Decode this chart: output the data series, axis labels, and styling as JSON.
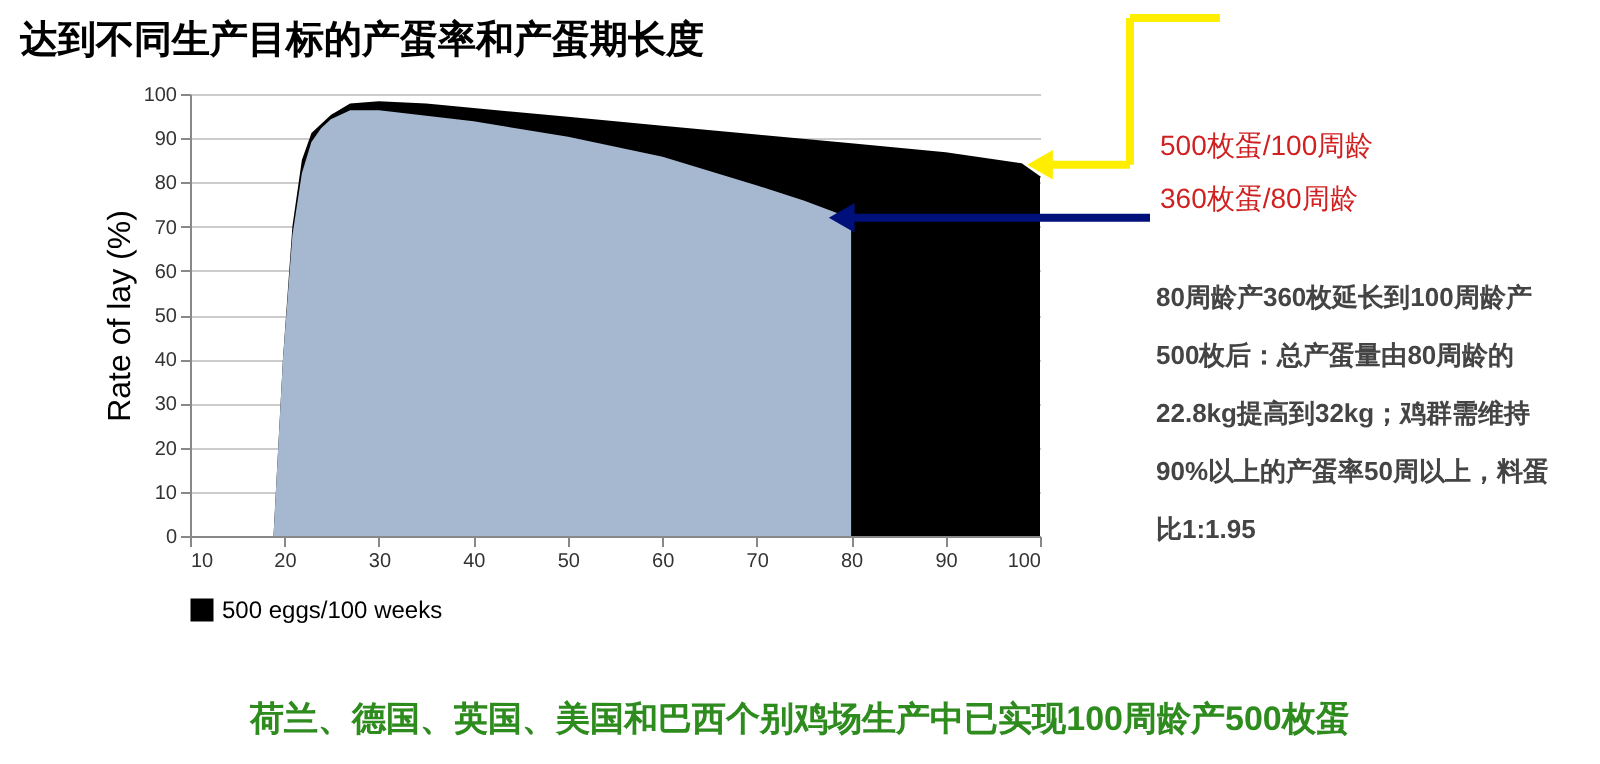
{
  "chart_data": {
    "type": "area",
    "title": "达到不同生产目标的产蛋率和产蛋期长度",
    "ylabel": "Rate of lay (%)",
    "xlim": [
      10,
      100
    ],
    "xticks": [
      10,
      20,
      30,
      40,
      50,
      60,
      70,
      80,
      90,
      100
    ],
    "ylim": [
      0,
      100
    ],
    "yticks": [
      0,
      10,
      20,
      30,
      40,
      50,
      60,
      70,
      80,
      90,
      100
    ],
    "grid": "y",
    "legend": "bottom",
    "series": [
      {
        "name": "500 eggs/100 weeks",
        "color": "#000000",
        "x": [
          19,
          20,
          21,
          22,
          23,
          25,
          27,
          30,
          35,
          40,
          50,
          60,
          70,
          80,
          90,
          98,
          100
        ],
        "values": [
          0,
          40,
          70,
          85,
          91,
          95,
          97.5,
          98,
          97.5,
          96.5,
          94.5,
          92.5,
          90.5,
          88.5,
          86.5,
          84,
          81
        ]
      },
      {
        "color": "#a6b8cf",
        "x": [
          19,
          20,
          21,
          22,
          23,
          24,
          25,
          27,
          30,
          40,
          50,
          60,
          70,
          75,
          80
        ],
        "values": [
          0,
          40,
          68,
          82,
          89,
          92,
          94,
          96,
          96,
          93.5,
          90,
          85.5,
          79,
          75.5,
          71.5
        ]
      }
    ],
    "annotations": [
      {
        "text": "500枚蛋/100周龄",
        "x": 100,
        "y": 84
      },
      {
        "text": "360枚蛋/80周龄",
        "x": 79,
        "y": 72
      },
      "80周龄产360枚延长到100周龄产500枚后：总产蛋量由80周龄的22.8kg提高到32kg；鸡群需维持90%以上的产蛋率50周以上，料蛋比1:1.95",
      "荷兰、德国、英国、美国和巴西个别鸡场生产中已实现100周龄产500枚蛋"
    ]
  }
}
